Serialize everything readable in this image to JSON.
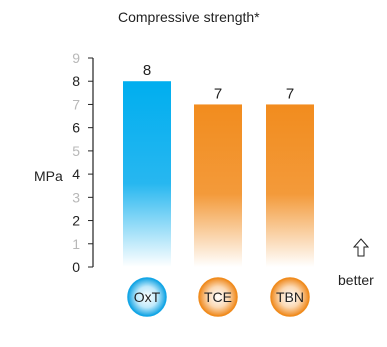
{
  "chart_data": {
    "type": "bar",
    "title": "Compressive strength*",
    "ylabel": "MPa",
    "ylim": [
      0,
      9
    ],
    "yticks": [
      0,
      1,
      2,
      3,
      4,
      5,
      6,
      7,
      8,
      9
    ],
    "yticks_light": [
      1,
      3,
      5,
      7,
      9
    ],
    "categories": [
      "OxT",
      "TCE",
      "TBN"
    ],
    "values": [
      8,
      7,
      7
    ],
    "data_labels": [
      "8",
      "7",
      "7"
    ],
    "colors": [
      "#14a6e6",
      "#f08c1e",
      "#f08c1e"
    ],
    "annotation": "better",
    "annotation_icon": "up-arrow-icon",
    "grid": false
  }
}
